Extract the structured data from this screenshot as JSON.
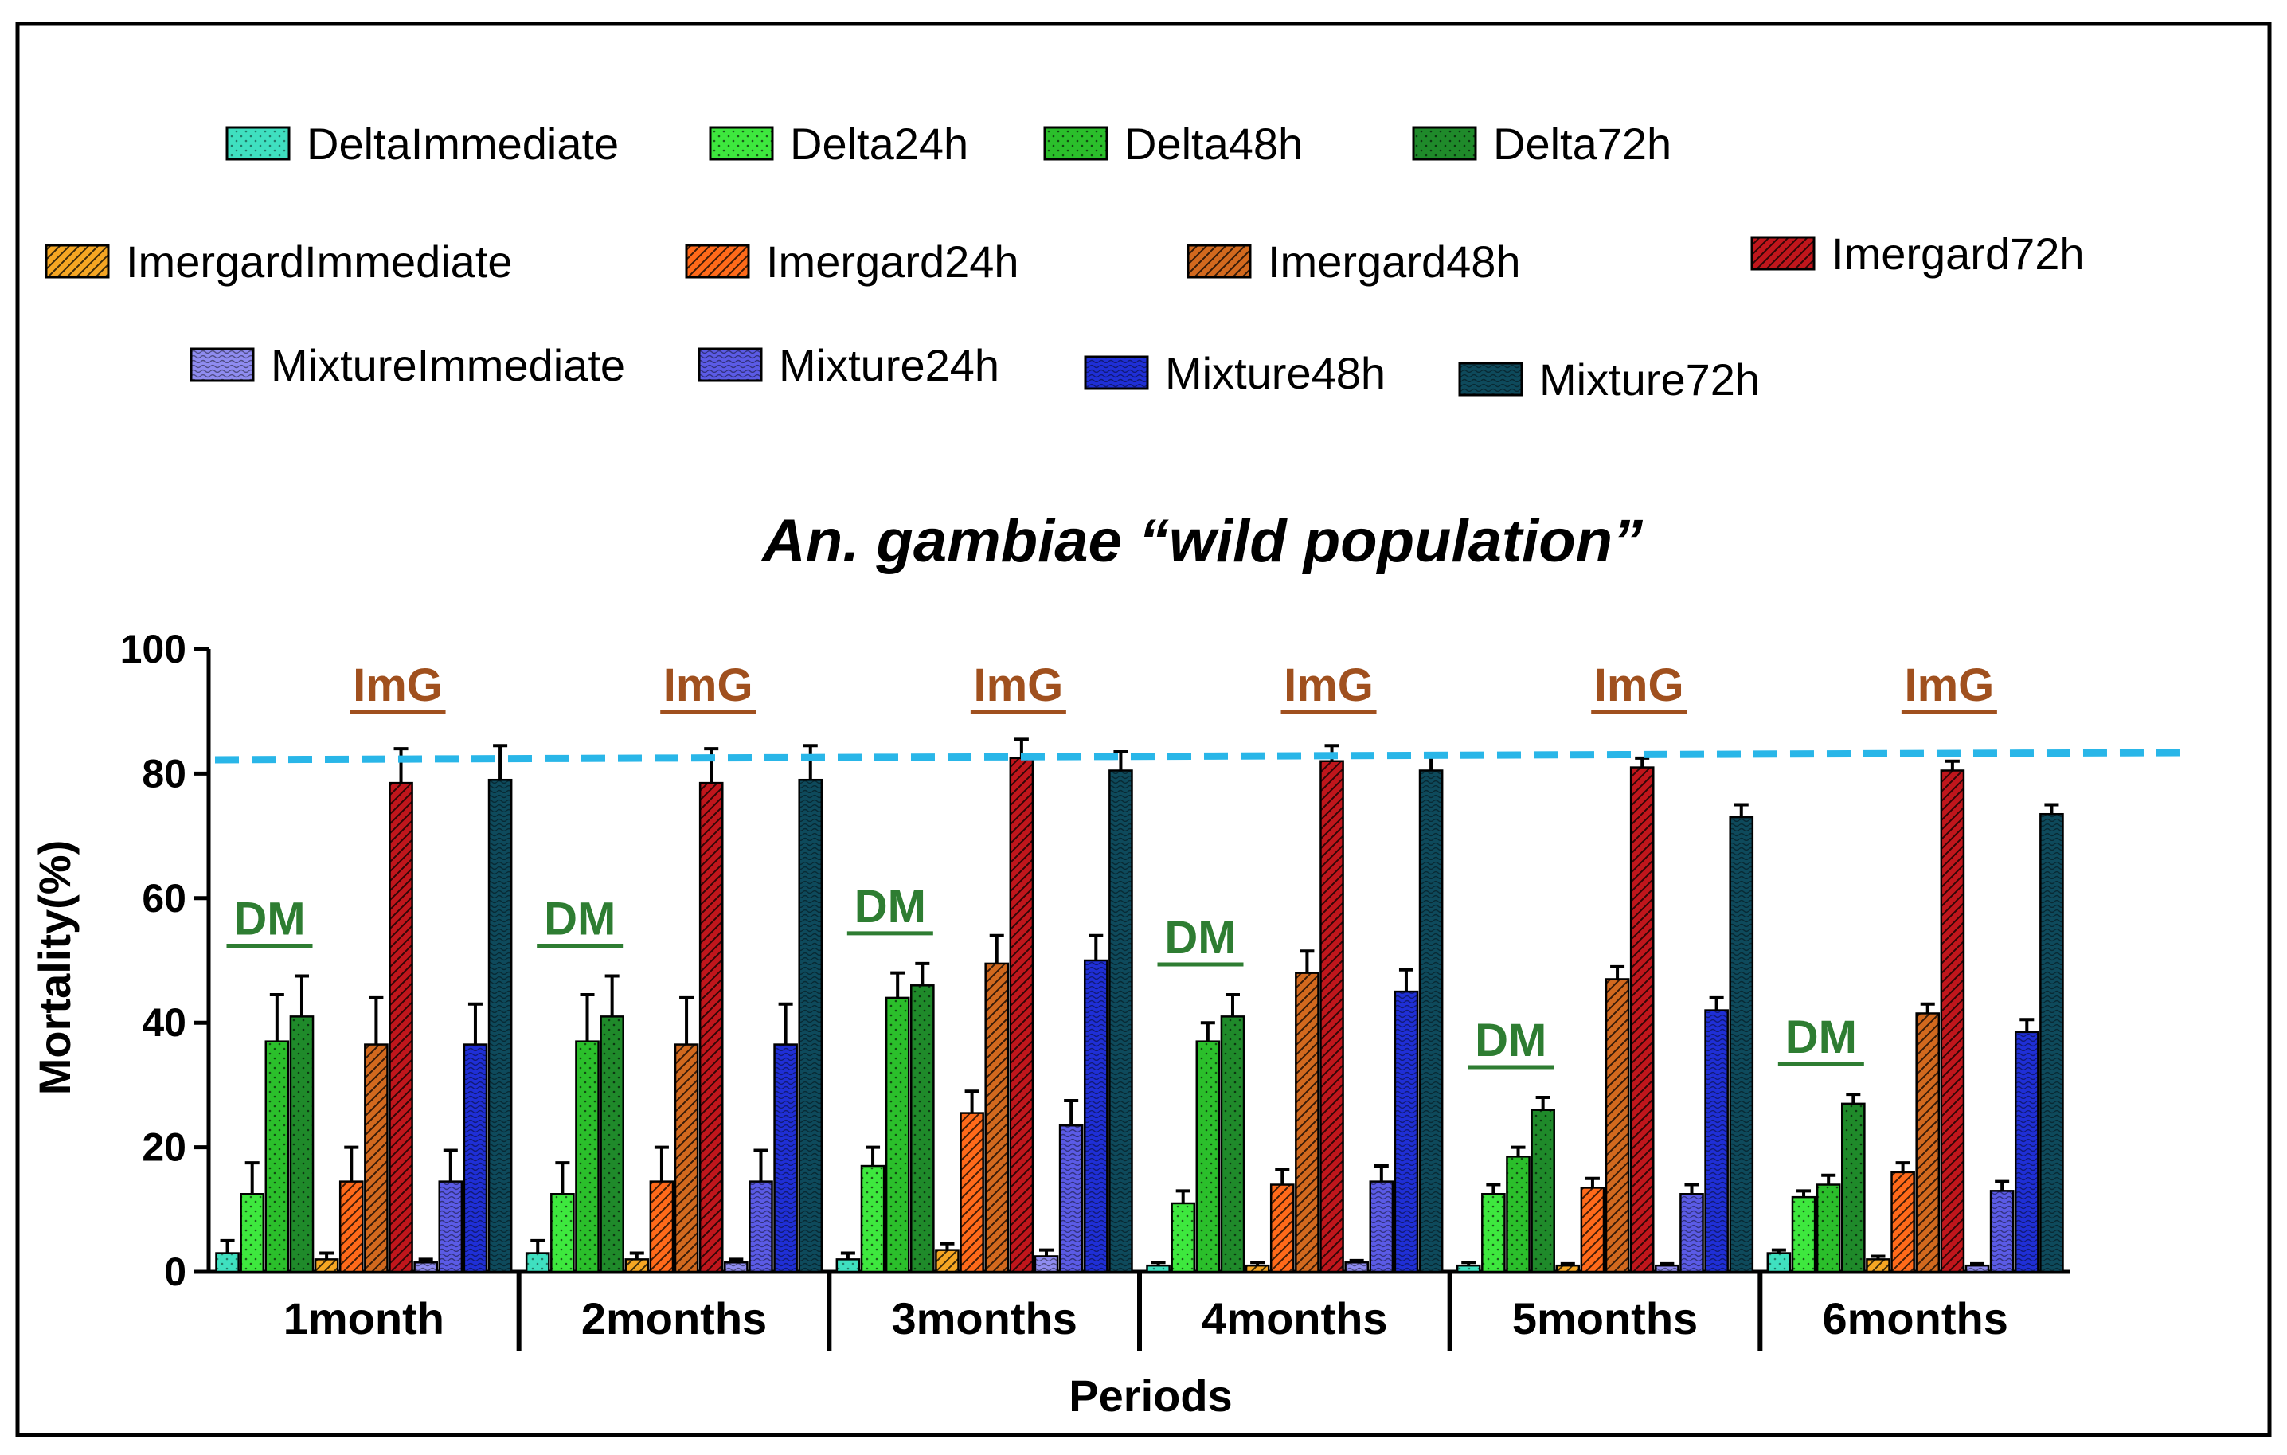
{
  "chart_data": {
    "type": "bar",
    "title": "An. gambiae “wild population”",
    "xlabel": "Periods",
    "ylabel": "Mortality(%)",
    "ylim": [
      0,
      100
    ],
    "yticks": [
      0,
      20,
      40,
      60,
      80,
      100
    ],
    "categories": [
      "1month",
      "2months",
      "3months",
      "4months",
      "5months",
      "6months"
    ],
    "threshold_line": {
      "value": 83,
      "color": "#29b6e8",
      "style": "dashed"
    },
    "legend_paren_open": "(",
    "legend_paren_close": ")",
    "series": [
      {
        "name": "DeltaImmediate",
        "color": "#3fe0c0",
        "pattern": "dots-light",
        "values": [
          3,
          3,
          2,
          1,
          1,
          3
        ],
        "errors": [
          2,
          2,
          1,
          0.5,
          0.5,
          0.5
        ]
      },
      {
        "name": "Delta24h",
        "color": "#3ee83e",
        "pattern": "dots",
        "values": [
          12.5,
          12.5,
          17,
          11,
          12.5,
          12
        ],
        "errors": [
          5,
          5,
          3,
          2,
          1.5,
          1
        ]
      },
      {
        "name": "Delta48h",
        "color": "#2bbf2b",
        "pattern": "dots",
        "values": [
          37,
          37,
          44,
          37,
          18.5,
          14
        ],
        "errors": [
          7.5,
          7.5,
          4,
          3,
          1.5,
          1.5
        ]
      },
      {
        "name": "Delta72h",
        "color": "#1f8a2a",
        "pattern": "dots",
        "values": [
          41,
          41,
          46,
          41,
          26,
          27
        ],
        "errors": [
          6.5,
          6.5,
          3.5,
          3.5,
          2,
          1.5
        ],
        "annotation": "DM"
      },
      {
        "name": "ImergardImmediate",
        "color": "#f5a623",
        "pattern": "hatch",
        "values": [
          2,
          2,
          3.5,
          1,
          1,
          2
        ],
        "errors": [
          1,
          1,
          1,
          0.5,
          0.3,
          0.5
        ]
      },
      {
        "name": "Imergard24h",
        "color": "#ff6a1a",
        "pattern": "hatch",
        "values": [
          14.5,
          14.5,
          25.5,
          14,
          13.5,
          16
        ],
        "errors": [
          5.5,
          5.5,
          3.5,
          2.5,
          1.5,
          1.5
        ]
      },
      {
        "name": "Imergard48h",
        "color": "#d2691e",
        "pattern": "hatch",
        "values": [
          36.5,
          36.5,
          49.5,
          48,
          47,
          41.5
        ],
        "errors": [
          7.5,
          7.5,
          4.5,
          3.5,
          2,
          1.5
        ]
      },
      {
        "name": "Imergard72h",
        "color": "#c0161c",
        "pattern": "hatch",
        "values": [
          78.5,
          78.5,
          82.5,
          82,
          81,
          80.5
        ],
        "errors": [
          5.5,
          5.5,
          3,
          2.5,
          1.5,
          1.5
        ],
        "annotation": "ImG"
      },
      {
        "name": "MixtureImmediate",
        "color": "#8f8cf0",
        "pattern": "waves",
        "values": [
          1.5,
          1.5,
          2.5,
          1.5,
          1,
          1
        ],
        "errors": [
          0.5,
          0.5,
          1,
          0.3,
          0.3,
          0.3
        ]
      },
      {
        "name": "Mixture24h",
        "color": "#5b5be6",
        "pattern": "waves",
        "values": [
          14.5,
          14.5,
          23.5,
          14.5,
          12.5,
          13
        ],
        "errors": [
          5,
          5,
          4,
          2.5,
          1.5,
          1.5
        ]
      },
      {
        "name": "Mixture48h",
        "color": "#1f2fd6",
        "pattern": "waves",
        "values": [
          36.5,
          36.5,
          50,
          45,
          42,
          38.5
        ],
        "errors": [
          6.5,
          6.5,
          4,
          3.5,
          2,
          2
        ]
      },
      {
        "name": "Mixture72h",
        "color": "#0e4a5c",
        "pattern": "waves",
        "values": [
          79,
          79,
          80.5,
          80.5,
          73,
          73.5
        ],
        "errors": [
          5.5,
          5.5,
          3,
          2.5,
          2,
          1.5
        ]
      }
    ]
  }
}
